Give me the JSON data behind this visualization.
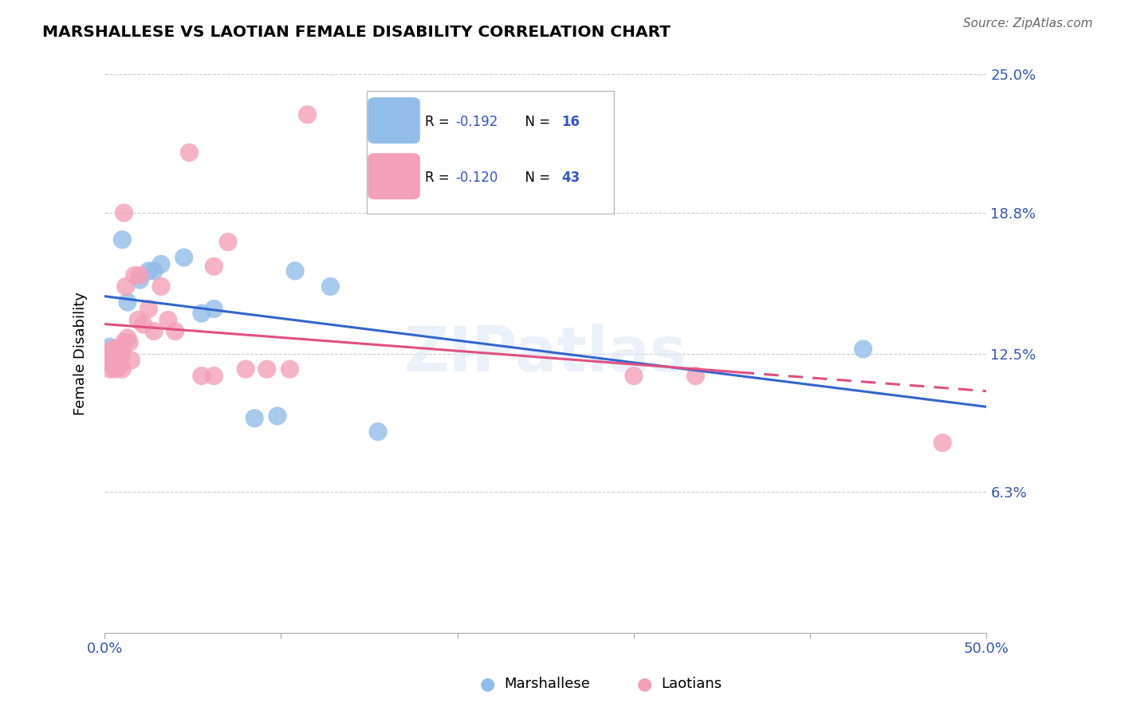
{
  "title": "MARSHALLESE VS LAOTIAN FEMALE DISABILITY CORRELATION CHART",
  "source": "Source: ZipAtlas.com",
  "ylabel": "Female Disability",
  "xlim": [
    0.0,
    0.5
  ],
  "ylim": [
    0.0,
    0.25
  ],
  "ytick_vals": [
    0.063,
    0.125,
    0.188,
    0.25
  ],
  "ytick_labels": [
    "6.3%",
    "12.5%",
    "18.8%",
    "25.0%"
  ],
  "xtick_vals": [
    0.0,
    0.1,
    0.2,
    0.3,
    0.4,
    0.5
  ],
  "xtick_labels": [
    "0.0%",
    "",
    "",
    "",
    "",
    "50.0%"
  ],
  "marshallese_R": -0.192,
  "marshallese_N": 16,
  "laotian_R": -0.12,
  "laotian_N": 43,
  "marshallese_color": "#92bde8",
  "laotian_color": "#f4a0b8",
  "trend_blue": "#3366cc",
  "trend_pink": "#e05080",
  "grid_color": "#cccccc",
  "watermark": "ZIPatlas",
  "marshallese_x": [
    0.003,
    0.01,
    0.012,
    0.018,
    0.022,
    0.028,
    0.03,
    0.045,
    0.055,
    0.062,
    0.085,
    0.095,
    0.105,
    0.125,
    0.155,
    0.43
  ],
  "marshallese_y": [
    0.128,
    0.175,
    0.148,
    0.158,
    0.16,
    0.162,
    0.165,
    0.168,
    0.142,
    0.145,
    0.095,
    0.098,
    0.162,
    0.155,
    0.09,
    0.127
  ],
  "laotian_x": [
    0.002,
    0.003,
    0.004,
    0.005,
    0.006,
    0.006,
    0.007,
    0.007,
    0.008,
    0.008,
    0.009,
    0.01,
    0.01,
    0.011,
    0.011,
    0.012,
    0.013,
    0.014,
    0.015,
    0.016,
    0.017,
    0.018,
    0.02,
    0.022,
    0.024,
    0.026,
    0.028,
    0.03,
    0.032,
    0.035,
    0.038,
    0.042,
    0.048,
    0.055,
    0.065,
    0.075,
    0.085,
    0.095,
    0.105,
    0.115,
    0.295,
    0.335,
    0.475
  ],
  "laotian_y": [
    0.123,
    0.118,
    0.122,
    0.125,
    0.12,
    0.128,
    0.118,
    0.125,
    0.12,
    0.128,
    0.122,
    0.118,
    0.125,
    0.12,
    0.128,
    0.125,
    0.188,
    0.132,
    0.122,
    0.125,
    0.12,
    0.125,
    0.16,
    0.135,
    0.128,
    0.145,
    0.132,
    0.15,
    0.155,
    0.14,
    0.135,
    0.155,
    0.215,
    0.115,
    0.16,
    0.175,
    0.118,
    0.118,
    0.118,
    0.23,
    0.115,
    0.115,
    0.085
  ]
}
